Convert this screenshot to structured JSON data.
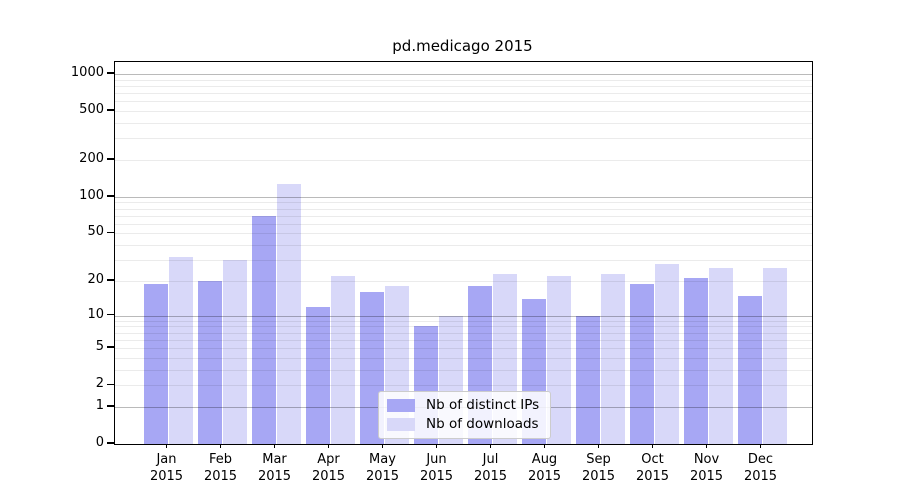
{
  "chart_data": {
    "type": "bar",
    "title": "pd.medicago 2015",
    "categories": [
      "Jan 2015",
      "Feb 2015",
      "Mar 2015",
      "Apr 2015",
      "May 2015",
      "Jun 2015",
      "Jul 2015",
      "Aug 2015",
      "Sep 2015",
      "Oct 2015",
      "Nov 2015",
      "Dec 2015"
    ],
    "series": [
      {
        "name": "Nb of distinct IPs",
        "color": "#a7a7f4",
        "values": [
          19,
          20,
          70,
          12,
          16,
          8,
          18,
          14,
          10,
          19,
          21,
          15
        ]
      },
      {
        "name": "Nb of downloads",
        "color": "#d8d8f9",
        "values": [
          32,
          30,
          128,
          22,
          18,
          10,
          23,
          22,
          23,
          28,
          26,
          26
        ]
      }
    ],
    "yscale": "log10(1+v)",
    "ylim": [
      0,
      1250
    ],
    "yticks": [
      0,
      1,
      2,
      5,
      10,
      20,
      50,
      100,
      200,
      500,
      1000
    ],
    "grid": "horizontal",
    "grid_major_at": [
      1,
      10,
      100,
      1000
    ],
    "legend_position": "lower center",
    "xlabel": "",
    "ylabel": ""
  }
}
